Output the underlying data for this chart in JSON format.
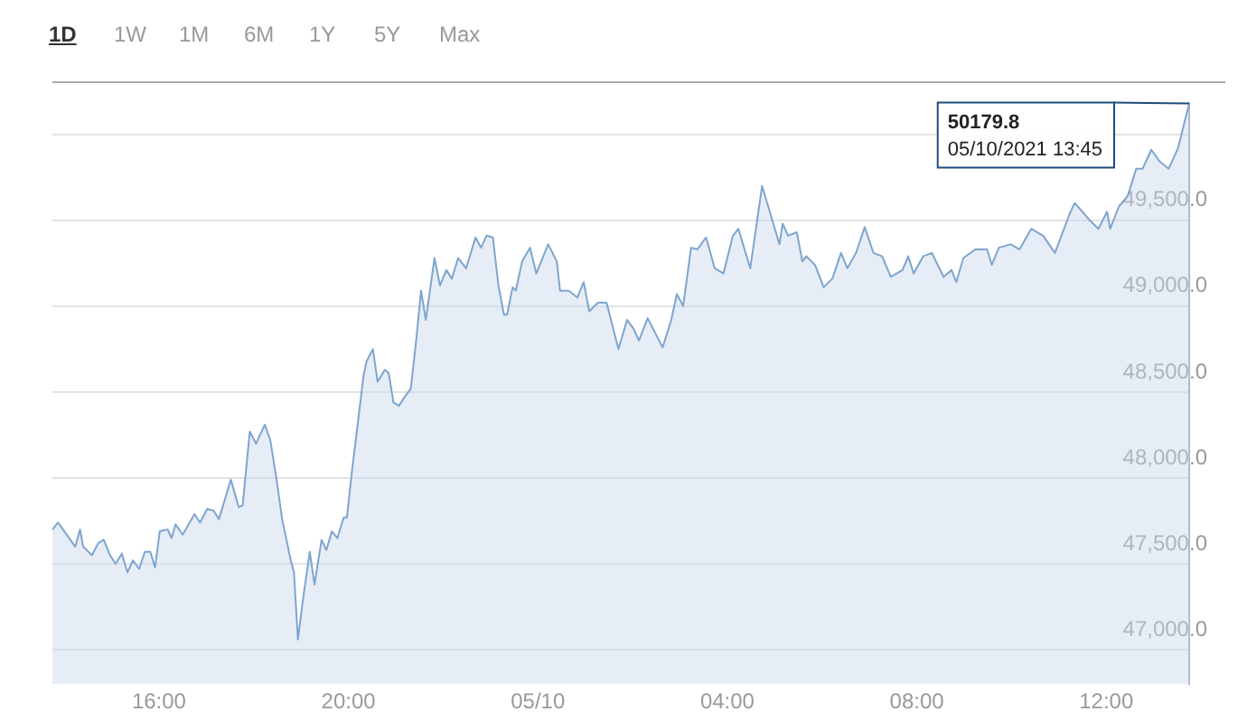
{
  "chart_data": {
    "type": "area",
    "color": "#7ea5cf",
    "x": [
      "2021-10-04T13:45",
      "2021-10-04T13:52",
      "2021-10-04T14:00",
      "2021-10-04T14:14",
      "2021-10-04T14:20",
      "2021-10-04T14:24",
      "2021-10-04T14:35",
      "2021-10-04T14:43",
      "2021-10-04T14:50",
      "2021-10-04T14:58",
      "2021-10-04T15:05",
      "2021-10-04T15:13",
      "2021-10-04T15:20",
      "2021-10-04T15:27",
      "2021-10-04T15:35",
      "2021-10-04T15:42",
      "2021-10-04T15:49",
      "2021-10-04T15:55",
      "2021-10-04T16:01",
      "2021-10-04T16:11",
      "2021-10-04T16:16",
      "2021-10-04T16:21",
      "2021-10-04T16:30",
      "2021-10-04T16:45",
      "2021-10-04T16:52",
      "2021-10-04T17:01",
      "2021-10-04T17:09",
      "2021-10-04T17:16",
      "2021-10-04T17:31",
      "2021-10-04T17:41",
      "2021-10-04T17:46",
      "2021-10-04T17:55",
      "2021-10-04T18:03",
      "2021-10-04T18:14",
      "2021-10-04T18:21",
      "2021-10-04T18:29",
      "2021-10-04T18:36",
      "2021-10-04T18:47",
      "2021-10-04T18:51",
      "2021-10-04T18:56",
      "2021-10-04T19:02",
      "2021-10-04T19:11",
      "2021-10-04T19:17",
      "2021-10-04T19:26",
      "2021-10-04T19:32",
      "2021-10-04T19:39",
      "2021-10-04T19:46",
      "2021-10-04T19:54",
      "2021-10-04T19:58",
      "2021-10-04T20:05",
      "2021-10-04T20:19",
      "2021-10-04T20:23",
      "2021-10-04T20:31",
      "2021-10-04T20:37",
      "2021-10-04T20:46",
      "2021-10-04T20:51",
      "2021-10-04T20:57",
      "2021-10-04T21:04",
      "2021-10-04T21:11",
      "2021-10-04T21:19",
      "2021-10-04T21:26",
      "2021-10-04T21:32",
      "2021-10-04T21:38",
      "2021-10-04T21:49",
      "2021-10-04T21:56",
      "2021-10-04T22:04",
      "2021-10-04T22:11",
      "2021-10-04T22:19",
      "2021-10-04T22:29",
      "2021-10-04T22:41",
      "2021-10-04T22:48",
      "2021-10-04T22:55",
      "2021-10-04T23:03",
      "2021-10-04T23:10",
      "2021-10-04T23:17",
      "2021-10-04T23:21",
      "2021-10-04T23:28",
      "2021-10-04T23:32",
      "2021-10-04T23:40",
      "2021-10-04T23:50",
      "2021-10-04T23:58",
      "2021-10-05T00:13",
      "2021-10-05T00:24",
      "2021-10-05T00:28",
      "2021-10-05T00:39",
      "2021-10-05T00:50",
      "2021-10-05T00:58",
      "2021-10-05T01:05",
      "2021-10-05T01:16",
      "2021-10-05T01:27",
      "2021-10-05T01:42",
      "2021-10-05T01:53",
      "2021-10-05T02:01",
      "2021-10-05T02:08",
      "2021-10-05T02:19",
      "2021-10-05T02:38",
      "2021-10-05T02:49",
      "2021-10-05T02:56",
      "2021-10-05T03:04",
      "2021-10-05T03:14",
      "2021-10-05T03:22",
      "2021-10-05T03:33",
      "2021-10-05T03:44",
      "2021-10-05T03:55",
      "2021-10-05T04:07",
      "2021-10-05T04:14",
      "2021-10-05T04:29",
      "2021-10-05T04:44",
      "2021-10-05T04:55",
      "2021-10-05T05:06",
      "2021-10-05T05:10",
      "2021-10-05T05:17",
      "2021-10-05T05:28",
      "2021-10-05T05:35",
      "2021-10-05T05:40",
      "2021-10-05T05:51",
      "2021-10-05T06:02",
      "2021-10-05T06:13",
      "2021-10-05T06:24",
      "2021-10-05T06:32",
      "2021-10-05T06:43",
      "2021-10-05T06:54",
      "2021-10-05T07:05",
      "2021-10-05T07:16",
      "2021-10-05T07:27",
      "2021-10-05T07:42",
      "2021-10-05T07:49",
      "2021-10-05T07:56",
      "2021-10-05T08:08",
      "2021-10-05T08:19",
      "2021-10-05T08:34",
      "2021-10-05T08:44",
      "2021-10-05T08:50",
      "2021-10-05T08:59",
      "2021-10-05T09:14",
      "2021-10-05T09:29",
      "2021-10-05T09:35",
      "2021-10-05T09:44",
      "2021-10-05T09:59",
      "2021-10-05T10:10",
      "2021-10-05T10:25",
      "2021-10-05T10:40",
      "2021-10-05T10:55",
      "2021-10-05T11:13",
      "2021-10-05T11:20",
      "2021-10-05T11:39",
      "2021-10-05T11:50",
      "2021-10-05T12:01",
      "2021-10-05T12:05",
      "2021-10-05T12:16",
      "2021-10-05T12:27",
      "2021-10-05T12:38",
      "2021-10-05T12:46",
      "2021-10-05T12:57",
      "2021-10-05T13:08",
      "2021-10-05T13:19",
      "2021-10-05T13:31",
      "2021-10-05T13:45"
    ],
    "values": [
      47700,
      47740,
      47690,
      47600,
      47700,
      47600,
      47550,
      47620,
      47640,
      47550,
      47500,
      47560,
      47450,
      47520,
      47470,
      47570,
      47570,
      47480,
      47690,
      47700,
      47650,
      47730,
      47670,
      47790,
      47740,
      47820,
      47810,
      47760,
      47990,
      47830,
      47840,
      48270,
      48200,
      48310,
      48220,
      47990,
      47760,
      47520,
      47450,
      47060,
      47280,
      47570,
      47380,
      47640,
      47580,
      47690,
      47650,
      47770,
      47770,
      48060,
      48590,
      48680,
      48750,
      48560,
      48630,
      48610,
      48440,
      48420,
      48470,
      48520,
      48810,
      49090,
      48920,
      49280,
      49120,
      49210,
      49160,
      49280,
      49220,
      49400,
      49340,
      49410,
      49400,
      49120,
      48950,
      48950,
      49110,
      49090,
      49260,
      49340,
      49190,
      49360,
      49260,
      49090,
      49090,
      49050,
      49140,
      48970,
      49020,
      49020,
      48750,
      48920,
      48870,
      48800,
      48930,
      48760,
      48920,
      49070,
      49000,
      49340,
      49330,
      49400,
      49220,
      49190,
      49410,
      49450,
      49220,
      49700,
      49530,
      49360,
      49480,
      49410,
      49430,
      49260,
      49290,
      49240,
      49110,
      49160,
      49310,
      49220,
      49310,
      49460,
      49310,
      49290,
      49170,
      49210,
      49290,
      49190,
      49290,
      49310,
      49170,
      49210,
      49140,
      49280,
      49330,
      49330,
      49240,
      49340,
      49360,
      49330,
      49450,
      49410,
      49310,
      49530,
      49600,
      49500,
      49450,
      49550,
      49450,
      49580,
      49640,
      49800,
      49800,
      49910,
      49840,
      49800,
      49920,
      50179.8
    ],
    "xlim": [
      "2021-10-04T13:45",
      "2021-10-05T13:45"
    ],
    "xticks": [
      {
        "value": "2021-10-04T16:00",
        "label": "16:00"
      },
      {
        "value": "2021-10-04T20:00",
        "label": "20:00"
      },
      {
        "value": "2021-10-05T00:00",
        "label": "05/10"
      },
      {
        "value": "2021-10-05T04:00",
        "label": "04:00"
      },
      {
        "value": "2021-10-05T08:00",
        "label": "08:00"
      },
      {
        "value": "2021-10-05T12:00",
        "label": "12:00"
      }
    ],
    "ylim": [
      46800,
      50180
    ],
    "yticks": [
      {
        "value": 47000,
        "label": "47,000.0"
      },
      {
        "value": 47500,
        "label": "47,500.0"
      },
      {
        "value": 48000,
        "label": "48,000.0"
      },
      {
        "value": 48500,
        "label": "48,500.0"
      },
      {
        "value": 49000,
        "label": "49,000.0"
      },
      {
        "value": 49500,
        "label": "49,500.0"
      },
      {
        "value": 50000,
        "label": null
      }
    ],
    "grid": "y",
    "annotations": [
      "1D",
      "1W",
      "1M",
      "6M",
      "1Y",
      "5Y",
      "Max",
      {
        "text": "50179.8\n05/10/2021 13:45",
        "x": "2021-10-05T13:45",
        "y": 50179.8
      }
    ]
  }
}
